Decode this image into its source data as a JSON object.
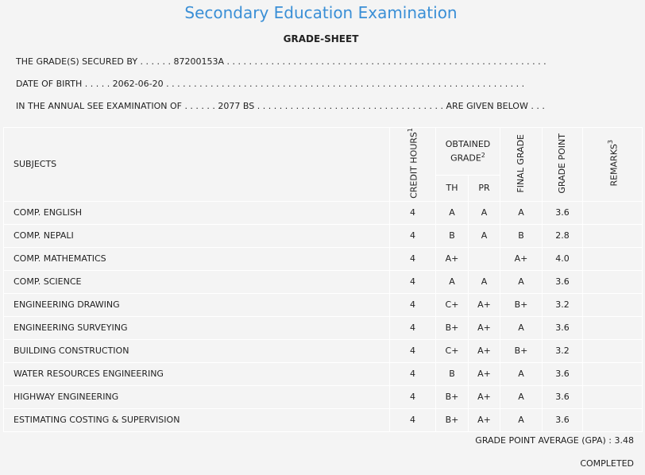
{
  "page_title": "Secondary Education Examination",
  "sheet_title": "GRADE-SHEET",
  "info": {
    "secured_by": "THE GRADE(S) SECURED BY . . . . . . 87200153A . . . . . . . . . . . . . . . . . . . . . . . . . . . . . . . . . . . . . . . . . . . . . . . . . . . . . . . . . .",
    "dob": "DATE OF BIRTH . . . . . 2062-06-20 . . . . . . . . . . . . . . . . . . . . . . . . . . . . . . . . . . . . . . . . . . . . . . . . . . . . . . . . . . . . . . . . .",
    "exam": "IN THE ANNUAL SEE EXAMINATION OF . . . . . . 2077 BS . . . . . . . . . . . . . . . . . . . . . . . . . . . . . . . . . . ARE GIVEN BELOW . . ."
  },
  "headers": {
    "subjects": "SUBJECTS",
    "credit_hours": "CREDIT HOURS",
    "credit_hours_sup": "1",
    "obtained_grade": "OBTAINED GRADE",
    "obtained_grade_sup": "2",
    "th": "TH",
    "pr": "PR",
    "final_grade": "FINAL GRADE",
    "grade_point": "GRADE POINT",
    "remarks": "REMARKS",
    "remarks_sup": "3"
  },
  "rows": [
    {
      "subject": "COMP. ENGLISH",
      "credit": "4",
      "th": "A",
      "pr": "A",
      "final": "A",
      "gp": "3.6",
      "remarks": ""
    },
    {
      "subject": "COMP. NEPALI",
      "credit": "4",
      "th": "B",
      "pr": "A",
      "final": "B",
      "gp": "2.8",
      "remarks": ""
    },
    {
      "subject": "COMP. MATHEMATICS",
      "credit": "4",
      "th": "A+",
      "pr": "",
      "final": "A+",
      "gp": "4.0",
      "remarks": ""
    },
    {
      "subject": "COMP. SCIENCE",
      "credit": "4",
      "th": "A",
      "pr": "A",
      "final": "A",
      "gp": "3.6",
      "remarks": ""
    },
    {
      "subject": "ENGINEERING DRAWING",
      "credit": "4",
      "th": "C+",
      "pr": "A+",
      "final": "B+",
      "gp": "3.2",
      "remarks": ""
    },
    {
      "subject": "ENGINEERING SURVEYING",
      "credit": "4",
      "th": "B+",
      "pr": "A+",
      "final": "A",
      "gp": "3.6",
      "remarks": ""
    },
    {
      "subject": "BUILDING CONSTRUCTION",
      "credit": "4",
      "th": "C+",
      "pr": "A+",
      "final": "B+",
      "gp": "3.2",
      "remarks": ""
    },
    {
      "subject": "WATER RESOURCES ENGINEERING",
      "credit": "4",
      "th": "B",
      "pr": "A+",
      "final": "A",
      "gp": "3.6",
      "remarks": ""
    },
    {
      "subject": "HIGHWAY ENGINEERING",
      "credit": "4",
      "th": "B+",
      "pr": "A+",
      "final": "A",
      "gp": "3.6",
      "remarks": ""
    },
    {
      "subject": "ESTIMATING COSTING & SUPERVISION",
      "credit": "4",
      "th": "B+",
      "pr": "A+",
      "final": "A",
      "gp": "3.6",
      "remarks": ""
    }
  ],
  "gpa_text": "GRADE POINT AVERAGE (GPA) : 3.48",
  "status_text": "COMPLETED"
}
